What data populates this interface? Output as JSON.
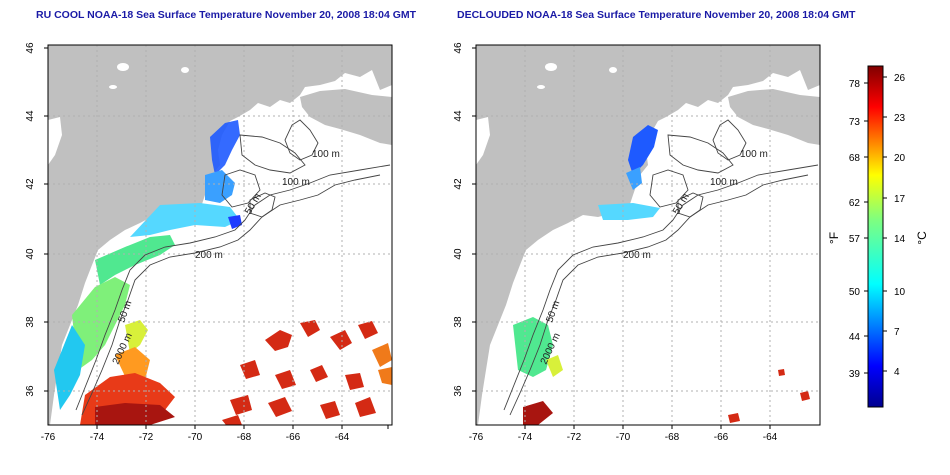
{
  "titles": {
    "left": "RU COOL NOAA-18 Sea Surface Temperature November 20, 2008 18:04 GMT",
    "right": "DECLOUDED NOAA-18 Sea Surface Temperature November 20, 2008 18:04 GMT"
  },
  "axes": {
    "lon_ticks": [
      "-76",
      "-74",
      "-72",
      "-70",
      "-68",
      "-66",
      "-64"
    ],
    "lat_ticks": [
      "46",
      "44",
      "42",
      "40",
      "38",
      "36"
    ]
  },
  "contour_labels": {
    "left": [
      "100 m",
      "100 m",
      "50 m",
      "200 m",
      "50 m",
      "2000 m"
    ],
    "right": [
      "100 m",
      "100 m",
      "50 m",
      "200 m",
      "50 m",
      "2000 m"
    ]
  },
  "colorbar": {
    "f_label": "°F",
    "c_label": "°C",
    "f_ticks": [
      "78",
      "73",
      "68",
      "62",
      "57",
      "50",
      "44",
      "39"
    ],
    "c_ticks": [
      "26",
      "23",
      "20",
      "17",
      "14",
      "10",
      "7",
      "4"
    ]
  },
  "colors": {
    "land": "#c0c0c0",
    "title": "#1a1aa6",
    "cold": "#1e3cff",
    "warm": "#cc1a10"
  }
}
